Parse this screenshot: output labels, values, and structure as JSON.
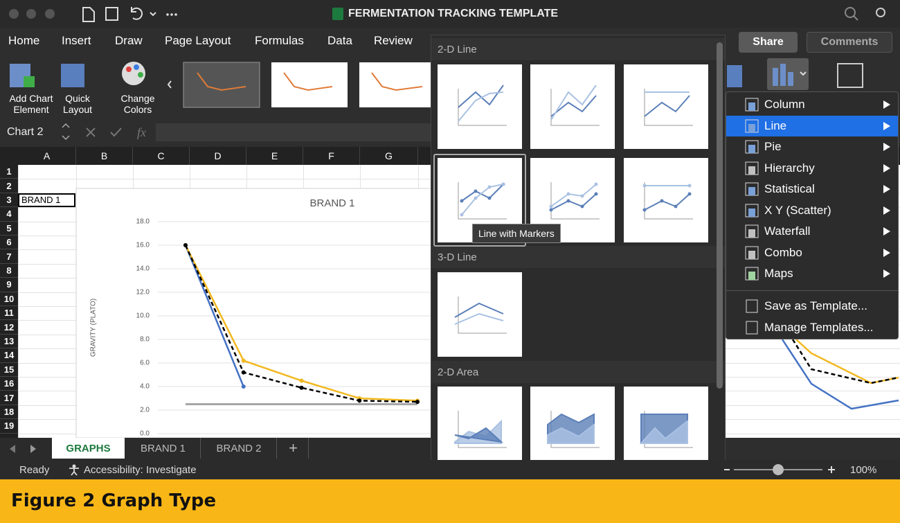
{
  "window_title": "FERMENTATION TRACKING TEMPLATE",
  "menu_tabs": [
    "Home",
    "Insert",
    "Draw",
    "Page Layout",
    "Formulas",
    "Data",
    "Review"
  ],
  "share": "Share",
  "comments": "Comments",
  "ribbon_buttons": [
    "Add Chart Element",
    "Quick Layout",
    "Change Colors"
  ],
  "name_box": "Chart 2",
  "fx": "fx",
  "columns": [
    "A",
    "B",
    "C",
    "D",
    "E",
    "F",
    "G"
  ],
  "rows": [
    1,
    2,
    3,
    4,
    5,
    6,
    7,
    8,
    9,
    10,
    11,
    12,
    13,
    14,
    15,
    16,
    17,
    18,
    19
  ],
  "cell_a3": "BRAND 1",
  "chart": {
    "type": "line",
    "title": "BRAND 1",
    "y_label": "GRAVITY (PLATO)",
    "ylim": [
      0,
      18
    ],
    "yticks": [
      {
        "value": 0,
        "label": "0.0"
      },
      {
        "value": 2,
        "label": "2.0"
      },
      {
        "value": 4,
        "label": "4.0"
      },
      {
        "value": 6,
        "label": "6.0"
      },
      {
        "value": 8,
        "label": "8.0"
      },
      {
        "value": 10,
        "label": "10.0"
      },
      {
        "value": 12,
        "label": "12.0"
      },
      {
        "value": 14,
        "label": "14.0"
      },
      {
        "value": 16,
        "label": "16.0"
      },
      {
        "value": 18,
        "label": "18.0"
      }
    ],
    "grid": true,
    "series": [
      {
        "color": "#a6a6a6",
        "values": [
          2.5,
          2.5,
          2.5,
          2.5,
          2.5
        ],
        "dashed": false,
        "markers": false
      },
      {
        "color": "#4472c4",
        "values": [
          16.0,
          4.0
        ],
        "dashed": false,
        "markers": true
      },
      {
        "color": "#f2b820",
        "values": [
          16.0,
          6.2,
          4.5,
          3.0,
          2.8
        ],
        "dashed": false,
        "markers": true
      },
      {
        "color": "#000000",
        "values": [
          16.0,
          5.2,
          3.9,
          2.8,
          2.7
        ],
        "dashed": true,
        "markers": true
      }
    ]
  },
  "gallery": {
    "sections": [
      "2-D Line",
      "3-D Line",
      "2-D Area"
    ],
    "tooltip": "Line with Markers"
  },
  "chart_type_menu": {
    "items": [
      "Column",
      "Line",
      "Pie",
      "Hierarchy",
      "Statistical",
      "X Y (Scatter)",
      "Waterfall",
      "Combo",
      "Maps"
    ],
    "template_items": [
      "Save as Template...",
      "Manage Templates..."
    ]
  },
  "sheet_tabs": [
    "GRAPHS",
    "BRAND 1",
    "BRAND 2",
    "+"
  ],
  "status": {
    "ready": "Ready",
    "accessibility": "Accessibility: Investigate",
    "zoom": "100%"
  },
  "caption": "Figure 2 Graph Type"
}
